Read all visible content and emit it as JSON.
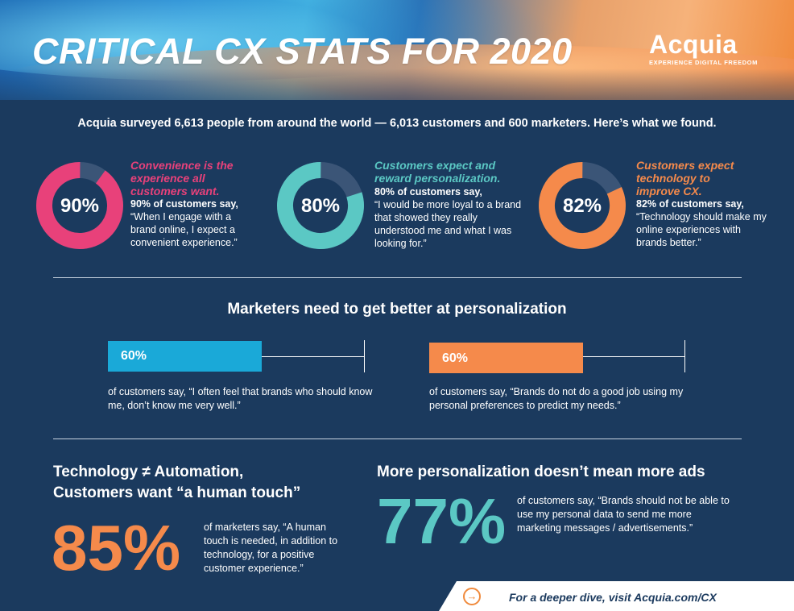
{
  "header": {
    "title": "CRITICAL CX STATS FOR 2020",
    "logo_name": "Acquia",
    "logo_tagline": "EXPERIENCE DIGITAL FREEDOM"
  },
  "intro": "Acquia surveyed 6,613 people from around the world — 6,013 customers and 600 marketers. Here’s what we found.",
  "stats": [
    {
      "percent": 90,
      "label": "90%",
      "color": "#e8417a",
      "heading": "Convenience is the experience all customers want.",
      "lead": "90% of customers say,",
      "quote": "“When I engage with a brand online, I expect a convenient experience.”"
    },
    {
      "percent": 80,
      "label": "80%",
      "color": "#5bc8c4",
      "heading": "Customers expect and reward personalization.",
      "lead": "80% of customers say,",
      "quote": "“I would be more loyal to a brand that showed they really understood me and what I was looking for.”"
    },
    {
      "percent": 82,
      "label": "82%",
      "color": "#f58a4b",
      "heading": "Customers expect technology to improve CX.",
      "lead": "82% of customers say,",
      "quote": "“Technology should make my online experiences with brands better.”"
    }
  ],
  "ring_track_color": "#3b5577",
  "personalization": {
    "title": "Marketers need to get better at personalization",
    "bars": [
      {
        "percent": 60,
        "label": "60%",
        "color": "#1aa9d8",
        "text": "of customers say, “I often feel that brands who should know me, don’t know me very well.”"
      },
      {
        "percent": 60,
        "label": "60%",
        "color": "#f58a4b",
        "text": "of customers say, “Brands do not do a good job using my personal preferences to predict my needs.”"
      }
    ]
  },
  "automation": {
    "title_line1": "Technology ≠ Automation,",
    "title_line2": "Customers want “a human touch”",
    "value": "85%",
    "color": "#f58a4b",
    "text": "of marketers say, “A human touch is needed, in addition to technology, for a positive customer experience.”"
  },
  "ads": {
    "title": "More personalization doesn’t mean more ads",
    "value": "77%",
    "color": "#5bc8c4",
    "text": "of customers say, “Brands should not be able to use my personal data to send me more marketing messages / advertisements.”"
  },
  "footer": {
    "icon": "→",
    "text": "For a deeper dive, visit Acquia.com/CX"
  }
}
